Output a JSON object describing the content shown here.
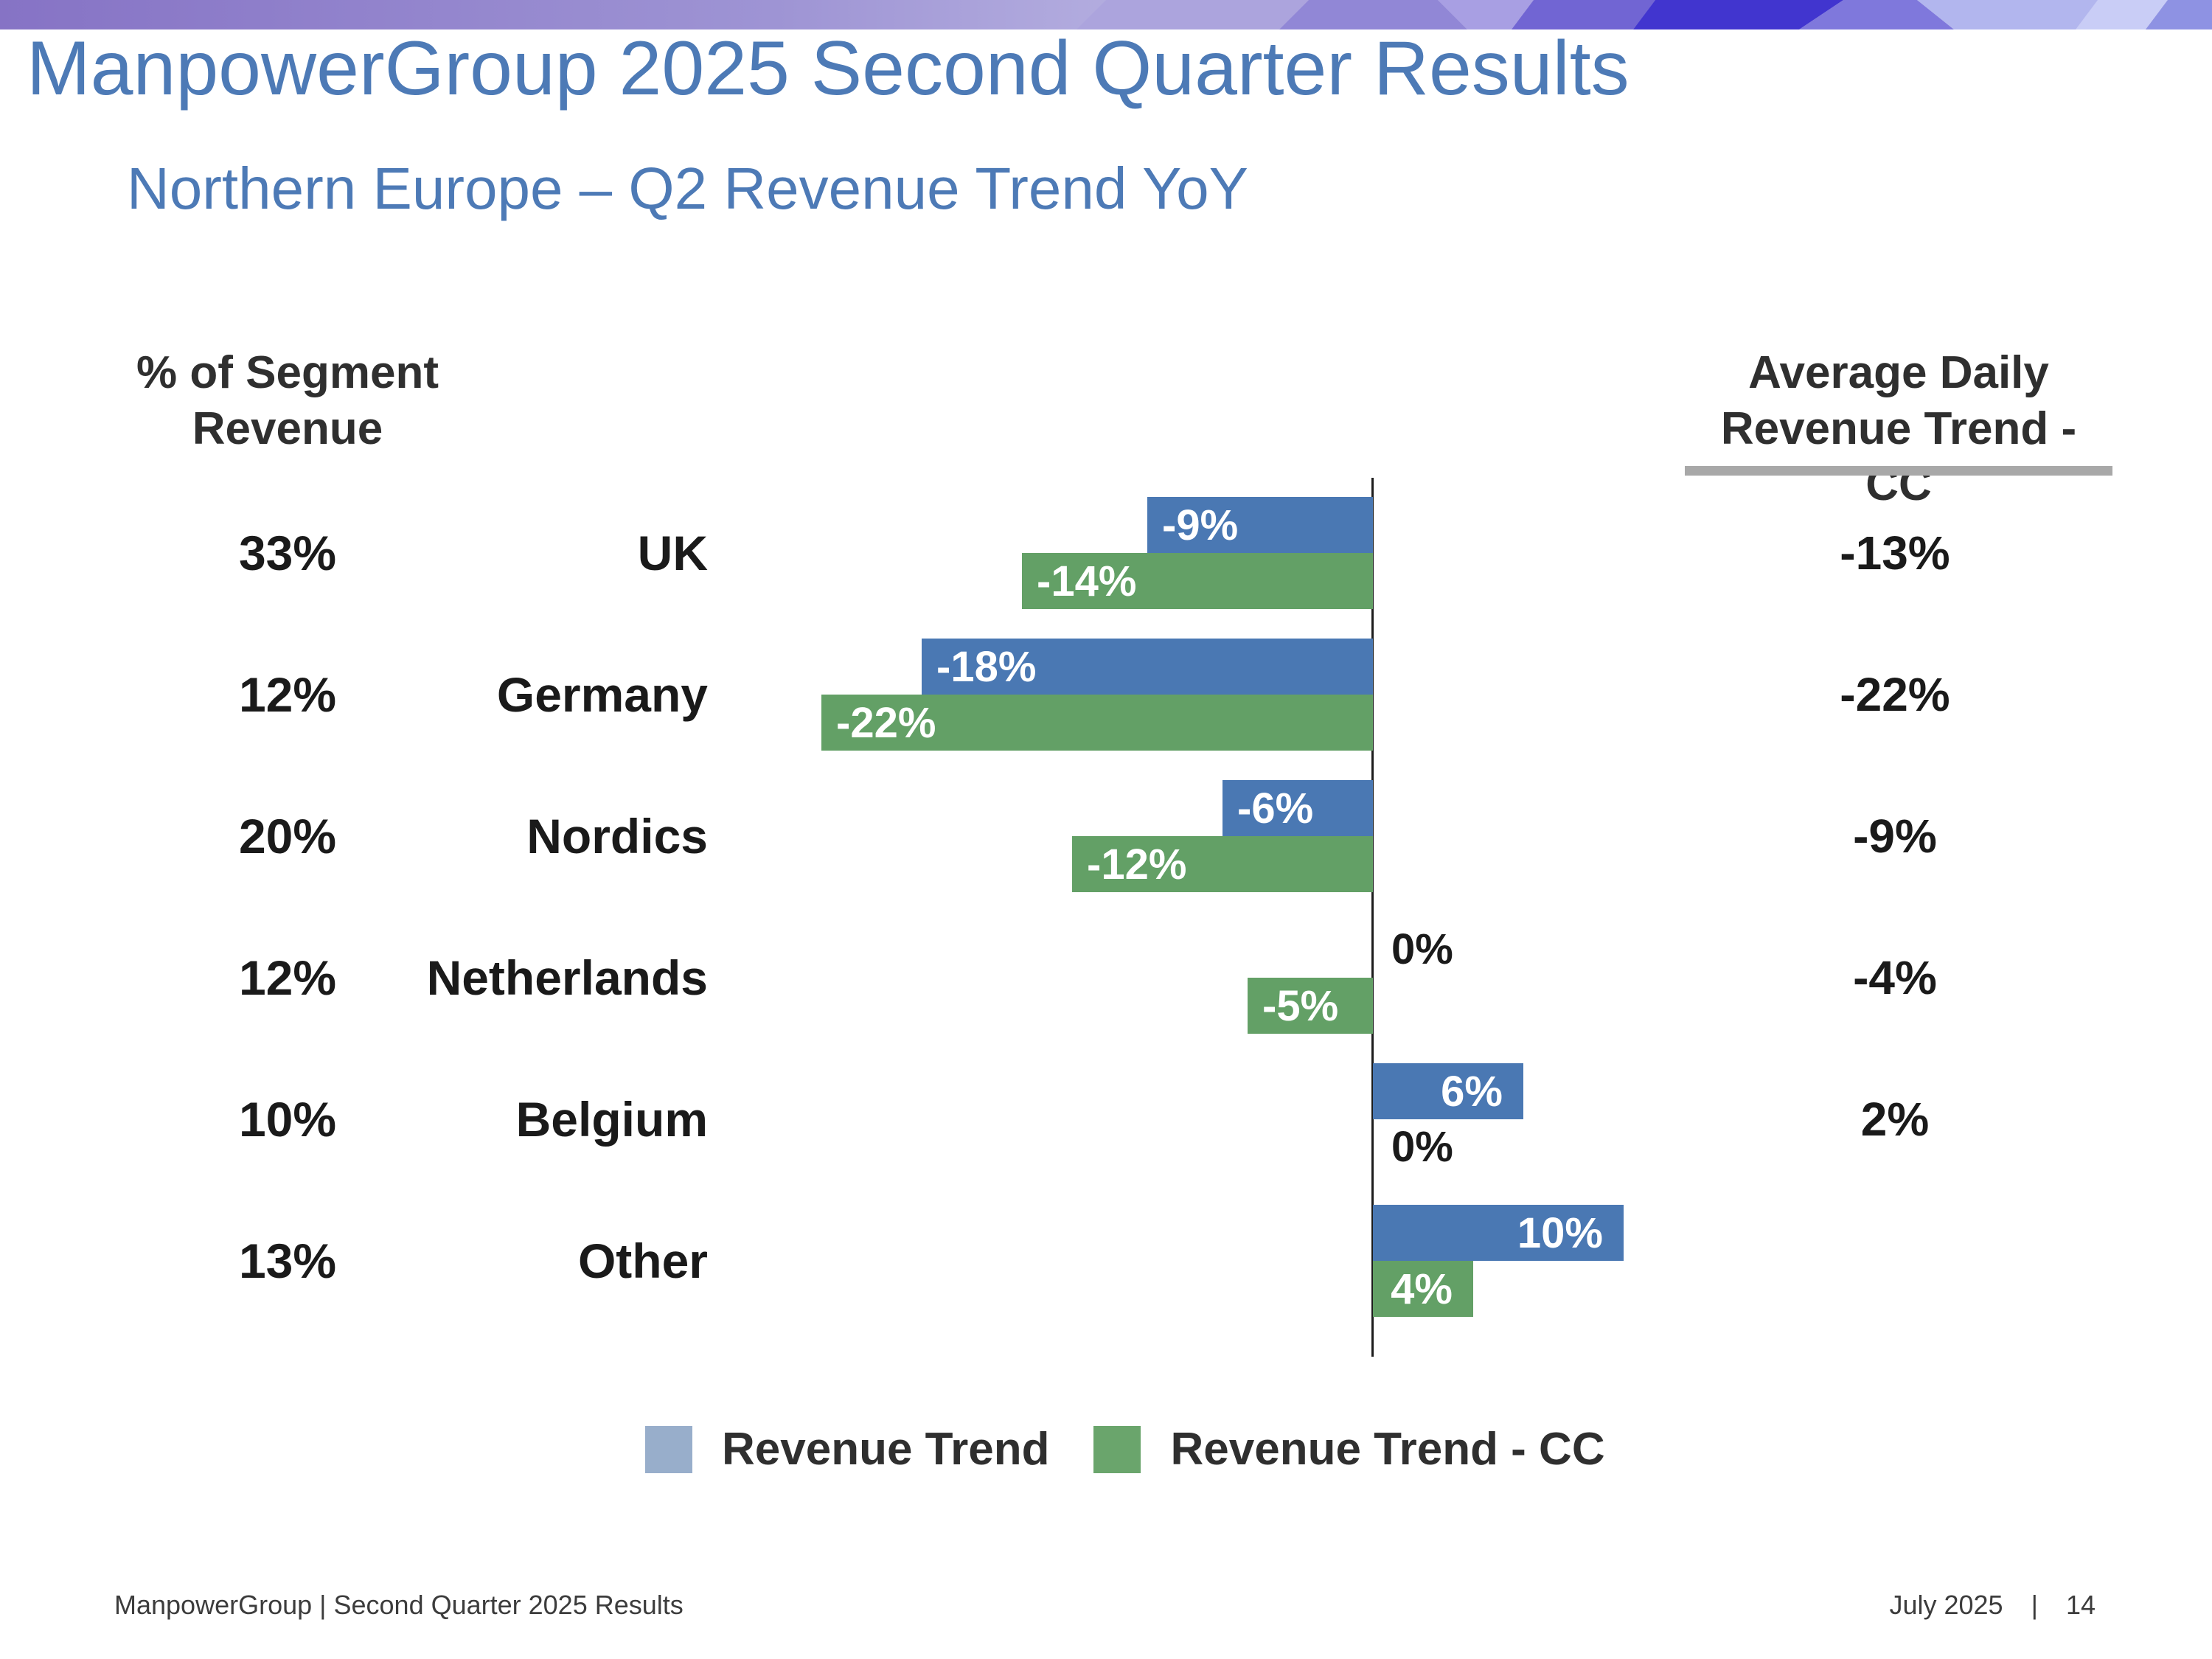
{
  "header": {
    "title": "ManpowerGroup 2025 Second Quarter Results",
    "subtitle": "Northern Europe – Q2 Revenue Trend YoY"
  },
  "columns": {
    "left": {
      "line1": "% of Segment",
      "line2": "Revenue"
    },
    "right": {
      "line1": "Average Daily",
      "line2": "Revenue Trend - CC"
    }
  },
  "chart_data": {
    "type": "bar",
    "orientation": "horizontal",
    "title": "Northern Europe – Q2 Revenue Trend YoY",
    "categories": [
      "UK",
      "Germany",
      "Nordics",
      "Netherlands",
      "Belgium",
      "Other"
    ],
    "segment_share": [
      "33%",
      "12%",
      "20%",
      "12%",
      "10%",
      "13%"
    ],
    "series": [
      {
        "name": "Revenue Trend",
        "color": "#4a78b3",
        "values": [
          -9,
          -18,
          -6,
          0,
          6,
          10
        ]
      },
      {
        "name": "Revenue Trend - CC",
        "color": "#63a066",
        "values": [
          -14,
          -22,
          -12,
          -5,
          0,
          4
        ]
      }
    ],
    "right_column_values": [
      "-13%",
      "-22%",
      "-9%",
      "-4%",
      "2%",
      ""
    ],
    "axis": {
      "zero_line": true,
      "gridlines": false
    },
    "legend": {
      "position": "bottom",
      "entries": [
        {
          "label": "Revenue Trend",
          "swatch_color": "#98aecb"
        },
        {
          "label": "Revenue Trend - CC",
          "swatch_color": "#6aa56c"
        }
      ]
    },
    "value_label_suffix": "%"
  },
  "colors": {
    "title_blue": "#4d7ab6",
    "bar_blue": "#4a78b3",
    "bar_green": "#63a066",
    "banner_purple": "#8673c5",
    "banner_deep_blue": "#4135cf",
    "underline_gray": "#a8a8a8"
  },
  "footer": {
    "left": "ManpowerGroup  |  Second Quarter 2025 Results",
    "date": "July 2025",
    "separator": "|",
    "page": "14"
  }
}
